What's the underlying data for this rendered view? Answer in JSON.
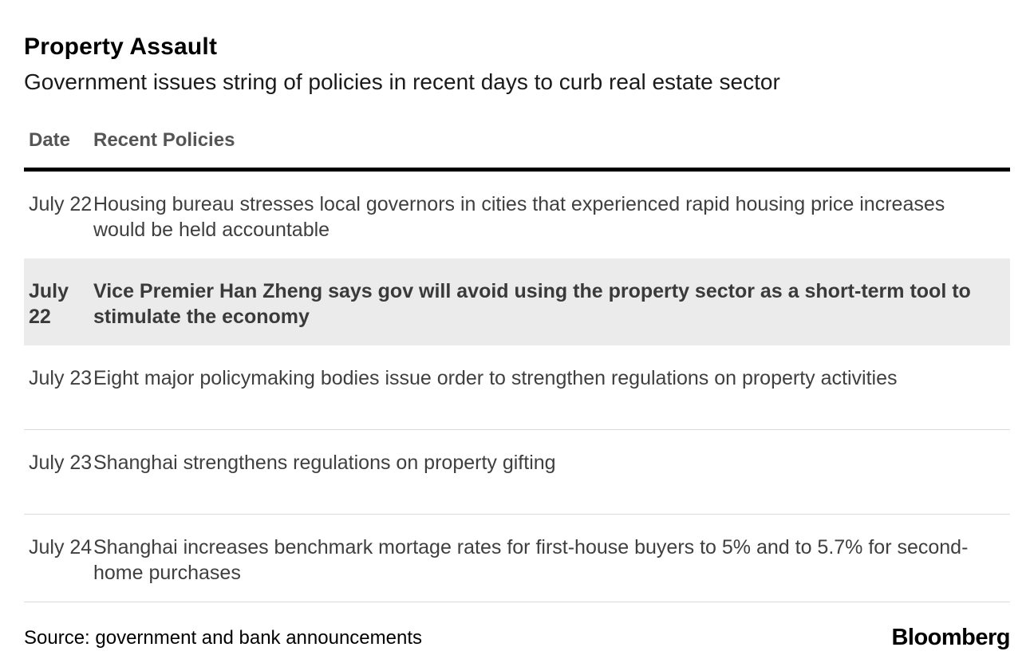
{
  "chart_data": {
    "type": "table",
    "title": "Property Assault",
    "subtitle": "Government issues string of policies in recent days to curb real estate sector",
    "columns": [
      "Date",
      "Recent Policies"
    ],
    "rows": [
      {
        "date": "July 22",
        "policy": "Housing bureau stresses local governors in cities that experienced rapid housing price increases would be held accountable",
        "highlighted": false
      },
      {
        "date": "July 22",
        "policy": "Vice Premier Han Zheng says gov will avoid using the property sector as a short-term tool to stimulate the economy",
        "highlighted": true
      },
      {
        "date": "July 23",
        "policy": "Eight major policymaking bodies issue order to strengthen regulations on property activities",
        "highlighted": false
      },
      {
        "date": "July 23",
        "policy": "Shanghai strengthens regulations on property gifting",
        "highlighted": false
      },
      {
        "date": "July 24",
        "policy": "Shanghai increases benchmark mortage rates for first-house buyers to 5% and to 5.7% for second-home purchases",
        "highlighted": false
      }
    ],
    "source": "Source: government and bank announcements",
    "branding": "Bloomberg",
    "layout_hints": {
      "highlight_row_index": 1,
      "grid": "horizontal dividers between plain rows, heavy rule under header"
    },
    "colors": {
      "highlight_bg": "#ebebeb",
      "body_text": "#3f3f3f",
      "header_text": "#555555",
      "divider": "#dcdcdc",
      "header_rule": "#000000",
      "title_text": "#000000"
    }
  }
}
